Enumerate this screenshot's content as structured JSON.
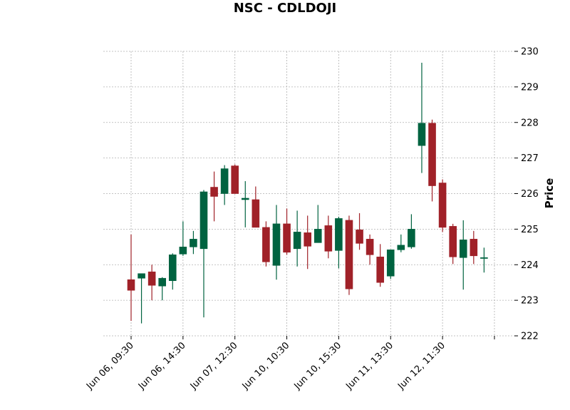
{
  "chart_data": {
    "type": "candlestick",
    "title": "NSC - CDLDOJI",
    "ylabel": "Price",
    "ylim": [
      222,
      230
    ],
    "yticks": [
      222,
      223,
      224,
      225,
      226,
      227,
      228,
      229,
      230
    ],
    "grid": true,
    "y_axis_side": "right",
    "up_color": "#006340",
    "down_color": "#a02128",
    "xtick_labels": [
      {
        "label": "Jun 06, 09:30",
        "index": 0
      },
      {
        "label": "Jun 06, 14:30",
        "index": 5
      },
      {
        "label": "Jun 07, 12:30",
        "index": 10
      },
      {
        "label": "Jun 10, 10:30",
        "index": 15
      },
      {
        "label": "Jun 10, 15:30",
        "index": 20
      },
      {
        "label": "Jun 11, 13:30",
        "index": 25
      },
      {
        "label": "Jun 12, 11:30",
        "index": 30
      },
      {
        "label": "",
        "index": 35
      }
    ],
    "candles": [
      {
        "o": 223.58,
        "h": 224.85,
        "l": 222.42,
        "c": 223.28
      },
      {
        "o": 223.62,
        "h": 223.75,
        "l": 222.35,
        "c": 223.75
      },
      {
        "o": 223.8,
        "h": 224.0,
        "l": 223.0,
        "c": 223.42
      },
      {
        "o": 223.4,
        "h": 223.65,
        "l": 223.0,
        "c": 223.62
      },
      {
        "o": 223.55,
        "h": 224.32,
        "l": 223.3,
        "c": 224.28
      },
      {
        "o": 224.3,
        "h": 225.22,
        "l": 224.25,
        "c": 224.5
      },
      {
        "o": 224.5,
        "h": 224.95,
        "l": 224.3,
        "c": 224.72
      },
      {
        "o": 224.45,
        "h": 226.1,
        "l": 222.52,
        "c": 226.05
      },
      {
        "o": 226.18,
        "h": 226.62,
        "l": 225.22,
        "c": 225.92
      },
      {
        "o": 226.0,
        "h": 226.8,
        "l": 225.68,
        "c": 226.7
      },
      {
        "o": 226.78,
        "h": 226.82,
        "l": 226.0,
        "c": 226.0
      },
      {
        "o": 225.83,
        "h": 226.35,
        "l": 225.05,
        "c": 225.87
      },
      {
        "o": 225.83,
        "h": 226.2,
        "l": 225.05,
        "c": 225.05
      },
      {
        "o": 225.05,
        "h": 225.22,
        "l": 223.95,
        "c": 224.08
      },
      {
        "o": 223.98,
        "h": 225.68,
        "l": 223.58,
        "c": 225.15
      },
      {
        "o": 225.15,
        "h": 225.58,
        "l": 224.28,
        "c": 224.35
      },
      {
        "o": 224.45,
        "h": 225.52,
        "l": 223.95,
        "c": 224.92
      },
      {
        "o": 224.9,
        "h": 225.38,
        "l": 223.88,
        "c": 224.52
      },
      {
        "o": 224.62,
        "h": 225.68,
        "l": 224.62,
        "c": 225.0
      },
      {
        "o": 225.1,
        "h": 225.38,
        "l": 224.18,
        "c": 224.38
      },
      {
        "o": 224.4,
        "h": 225.35,
        "l": 223.9,
        "c": 225.3
      },
      {
        "o": 225.25,
        "h": 225.38,
        "l": 223.15,
        "c": 223.32
      },
      {
        "o": 224.98,
        "h": 225.45,
        "l": 224.42,
        "c": 224.6
      },
      {
        "o": 224.72,
        "h": 224.85,
        "l": 224.0,
        "c": 224.28
      },
      {
        "o": 224.22,
        "h": 224.58,
        "l": 223.38,
        "c": 223.5
      },
      {
        "o": 223.68,
        "h": 224.42,
        "l": 223.6,
        "c": 224.42
      },
      {
        "o": 224.42,
        "h": 224.85,
        "l": 224.35,
        "c": 224.55
      },
      {
        "o": 224.5,
        "h": 225.42,
        "l": 224.45,
        "c": 225.0
      },
      {
        "o": 227.35,
        "h": 229.68,
        "l": 226.58,
        "c": 227.98
      },
      {
        "o": 227.98,
        "h": 228.08,
        "l": 225.78,
        "c": 226.22
      },
      {
        "o": 226.3,
        "h": 226.4,
        "l": 224.92,
        "c": 225.05
      },
      {
        "o": 225.08,
        "h": 225.15,
        "l": 224.02,
        "c": 224.22
      },
      {
        "o": 224.2,
        "h": 225.25,
        "l": 223.3,
        "c": 224.7
      },
      {
        "o": 224.72,
        "h": 224.95,
        "l": 224.02,
        "c": 224.25
      },
      {
        "o": 224.2,
        "h": 224.48,
        "l": 223.78,
        "c": 224.2
      }
    ]
  }
}
